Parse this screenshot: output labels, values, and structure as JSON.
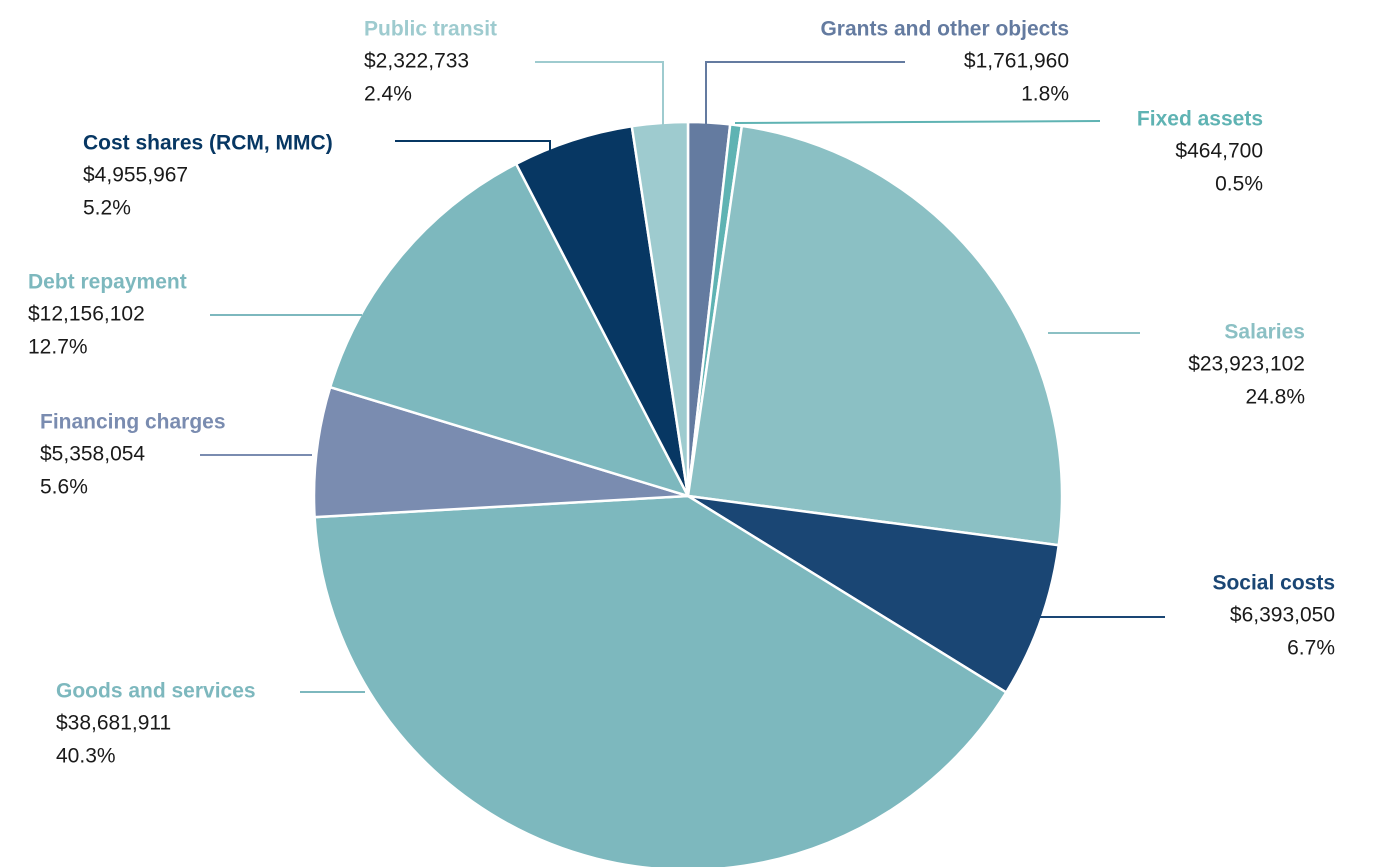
{
  "chart_data": {
    "type": "pie",
    "categories": [
      "Grants and other objects",
      "Fixed assets",
      "Salaries",
      "Social costs",
      "Goods and services",
      "Financing charges",
      "Debt repayment",
      "Cost shares (RCM, MMC)",
      "Public transit"
    ],
    "values": [
      1.8,
      0.5,
      24.8,
      6.7,
      40.3,
      5.6,
      12.7,
      5.2,
      2.4
    ],
    "value_labels": [
      "1.8%",
      "0.5%",
      "24.8%",
      "6.7%",
      "40.3%",
      "5.6%",
      "12.7%",
      "5.2%",
      "2.4%"
    ],
    "amounts": [
      1761960,
      464700,
      23923102,
      6393050,
      38681911,
      5358054,
      12156102,
      4955967,
      2322733
    ],
    "amount_labels": [
      "$1,761,960",
      "$464,700",
      "$23,923,102",
      "$6,393,050",
      "$38,681,911",
      "$5,358,054",
      "$12,156,102",
      "$4,955,967",
      "$2,322,733"
    ],
    "colors": [
      "#647ba0",
      "#5fb3b3",
      "#8bc0c4",
      "#1a4674",
      "#7db8be",
      "#7a8cb0",
      "#7db8be",
      "#073763",
      "#9ecbcf"
    ]
  }
}
